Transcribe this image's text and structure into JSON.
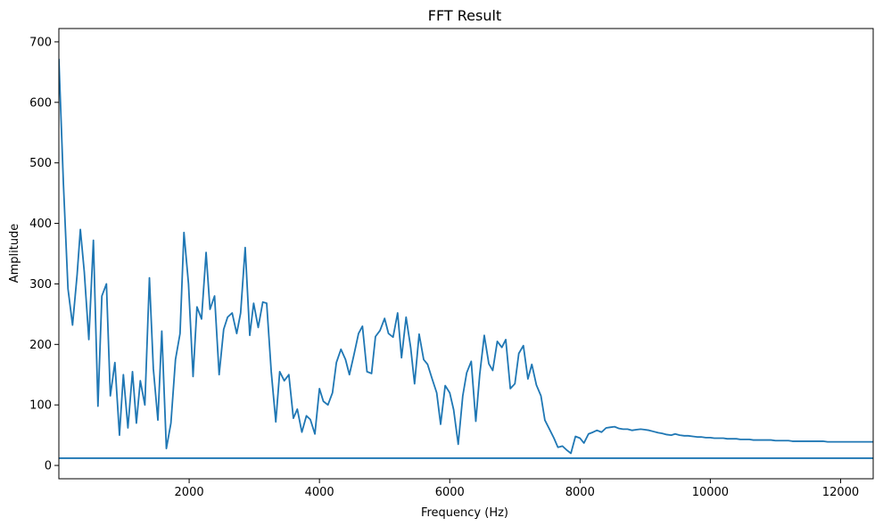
{
  "chart_data": {
    "type": "line",
    "title": "FFT Result",
    "xlabel": "Frequency (Hz)",
    "ylabel": "Amplitude",
    "xlim": [
      0,
      12500
    ],
    "ylim": [
      -22,
      722
    ],
    "xticks": [
      2000,
      4000,
      6000,
      8000,
      10000,
      12000
    ],
    "yticks": [
      0,
      100,
      200,
      300,
      400,
      500,
      600,
      700
    ],
    "grid": false,
    "series": [
      {
        "color": "#1f77b4",
        "points": [
          [
            0,
            672
          ],
          [
            70,
            465
          ],
          [
            140,
            292
          ],
          [
            210,
            232
          ],
          [
            280,
            315
          ],
          [
            330,
            390
          ],
          [
            390,
            320
          ],
          [
            460,
            208
          ],
          [
            530,
            372
          ],
          [
            600,
            98
          ],
          [
            660,
            280
          ],
          [
            730,
            300
          ],
          [
            790,
            115
          ],
          [
            860,
            170
          ],
          [
            930,
            50
          ],
          [
            990,
            150
          ],
          [
            1060,
            62
          ],
          [
            1130,
            155
          ],
          [
            1190,
            70
          ],
          [
            1250,
            140
          ],
          [
            1320,
            100
          ],
          [
            1390,
            310
          ],
          [
            1450,
            160
          ],
          [
            1520,
            75
          ],
          [
            1580,
            222
          ],
          [
            1650,
            28
          ],
          [
            1720,
            70
          ],
          [
            1790,
            175
          ],
          [
            1860,
            218
          ],
          [
            1920,
            385
          ],
          [
            1990,
            300
          ],
          [
            2060,
            147
          ],
          [
            2120,
            262
          ],
          [
            2190,
            242
          ],
          [
            2260,
            352
          ],
          [
            2320,
            258
          ],
          [
            2390,
            280
          ],
          [
            2460,
            150
          ],
          [
            2530,
            225
          ],
          [
            2590,
            245
          ],
          [
            2660,
            252
          ],
          [
            2730,
            218
          ],
          [
            2790,
            252
          ],
          [
            2860,
            360
          ],
          [
            2930,
            215
          ],
          [
            2990,
            268
          ],
          [
            3060,
            228
          ],
          [
            3130,
            270
          ],
          [
            3190,
            268
          ],
          [
            3260,
            155
          ],
          [
            3330,
            72
          ],
          [
            3390,
            155
          ],
          [
            3460,
            140
          ],
          [
            3530,
            150
          ],
          [
            3600,
            78
          ],
          [
            3660,
            93
          ],
          [
            3730,
            55
          ],
          [
            3800,
            82
          ],
          [
            3860,
            76
          ],
          [
            3930,
            52
          ],
          [
            4000,
            127
          ],
          [
            4060,
            106
          ],
          [
            4130,
            100
          ],
          [
            4200,
            120
          ],
          [
            4260,
            170
          ],
          [
            4330,
            192
          ],
          [
            4400,
            175
          ],
          [
            4460,
            150
          ],
          [
            4530,
            183
          ],
          [
            4600,
            218
          ],
          [
            4660,
            230
          ],
          [
            4730,
            155
          ],
          [
            4800,
            152
          ],
          [
            4860,
            213
          ],
          [
            4930,
            223
          ],
          [
            5000,
            243
          ],
          [
            5060,
            218
          ],
          [
            5130,
            212
          ],
          [
            5200,
            252
          ],
          [
            5260,
            178
          ],
          [
            5330,
            245
          ],
          [
            5400,
            195
          ],
          [
            5460,
            135
          ],
          [
            5530,
            217
          ],
          [
            5600,
            175
          ],
          [
            5660,
            167
          ],
          [
            5730,
            143
          ],
          [
            5800,
            120
          ],
          [
            5860,
            68
          ],
          [
            5930,
            132
          ],
          [
            6000,
            120
          ],
          [
            6060,
            92
          ],
          [
            6130,
            35
          ],
          [
            6200,
            115
          ],
          [
            6260,
            153
          ],
          [
            6330,
            172
          ],
          [
            6400,
            73
          ],
          [
            6460,
            150
          ],
          [
            6530,
            215
          ],
          [
            6600,
            168
          ],
          [
            6660,
            157
          ],
          [
            6730,
            205
          ],
          [
            6800,
            195
          ],
          [
            6860,
            208
          ],
          [
            6930,
            127
          ],
          [
            7000,
            135
          ],
          [
            7060,
            185
          ],
          [
            7130,
            198
          ],
          [
            7200,
            143
          ],
          [
            7260,
            167
          ],
          [
            7330,
            133
          ],
          [
            7400,
            115
          ],
          [
            7460,
            75
          ],
          [
            7530,
            60
          ],
          [
            7600,
            45
          ],
          [
            7660,
            30
          ],
          [
            7730,
            32
          ],
          [
            7800,
            25
          ],
          [
            7860,
            20
          ],
          [
            7930,
            48
          ],
          [
            8000,
            45
          ],
          [
            8060,
            37
          ],
          [
            8130,
            52
          ],
          [
            8200,
            55
          ],
          [
            8260,
            58
          ],
          [
            8330,
            55
          ],
          [
            8400,
            62
          ],
          [
            8460,
            63
          ],
          [
            8530,
            64
          ],
          [
            8600,
            61
          ],
          [
            8660,
            60
          ],
          [
            8730,
            60
          ],
          [
            8800,
            58
          ],
          [
            8860,
            59
          ],
          [
            8930,
            60
          ],
          [
            9000,
            59
          ],
          [
            9060,
            58
          ],
          [
            9130,
            56
          ],
          [
            9200,
            54
          ],
          [
            9260,
            53
          ],
          [
            9330,
            51
          ],
          [
            9400,
            50
          ],
          [
            9460,
            52
          ],
          [
            9530,
            50
          ],
          [
            9600,
            49
          ],
          [
            9660,
            49
          ],
          [
            9730,
            48
          ],
          [
            9800,
            47
          ],
          [
            9860,
            47
          ],
          [
            9930,
            46
          ],
          [
            10000,
            46
          ],
          [
            10060,
            45
          ],
          [
            10130,
            45
          ],
          [
            10200,
            45
          ],
          [
            10260,
            44
          ],
          [
            10330,
            44
          ],
          [
            10400,
            44
          ],
          [
            10460,
            43
          ],
          [
            10530,
            43
          ],
          [
            10600,
            43
          ],
          [
            10660,
            42
          ],
          [
            10730,
            42
          ],
          [
            10800,
            42
          ],
          [
            10860,
            42
          ],
          [
            10930,
            42
          ],
          [
            11000,
            41
          ],
          [
            11060,
            41
          ],
          [
            11130,
            41
          ],
          [
            11200,
            41
          ],
          [
            11260,
            40
          ],
          [
            11330,
            40
          ],
          [
            11400,
            40
          ],
          [
            11460,
            40
          ],
          [
            11530,
            40
          ],
          [
            11600,
            40
          ],
          [
            11660,
            40
          ],
          [
            11730,
            40
          ],
          [
            11800,
            39
          ],
          [
            11860,
            39
          ],
          [
            11930,
            39
          ],
          [
            12000,
            39
          ],
          [
            12060,
            39
          ],
          [
            12130,
            39
          ],
          [
            12200,
            39
          ],
          [
            12260,
            39
          ],
          [
            12330,
            39
          ],
          [
            12400,
            39
          ],
          [
            12460,
            39
          ],
          [
            12500,
            39
          ]
        ]
      },
      {
        "color": "#1f77b4",
        "points": [
          [
            0,
            12
          ],
          [
            12500,
            12
          ]
        ]
      }
    ]
  }
}
